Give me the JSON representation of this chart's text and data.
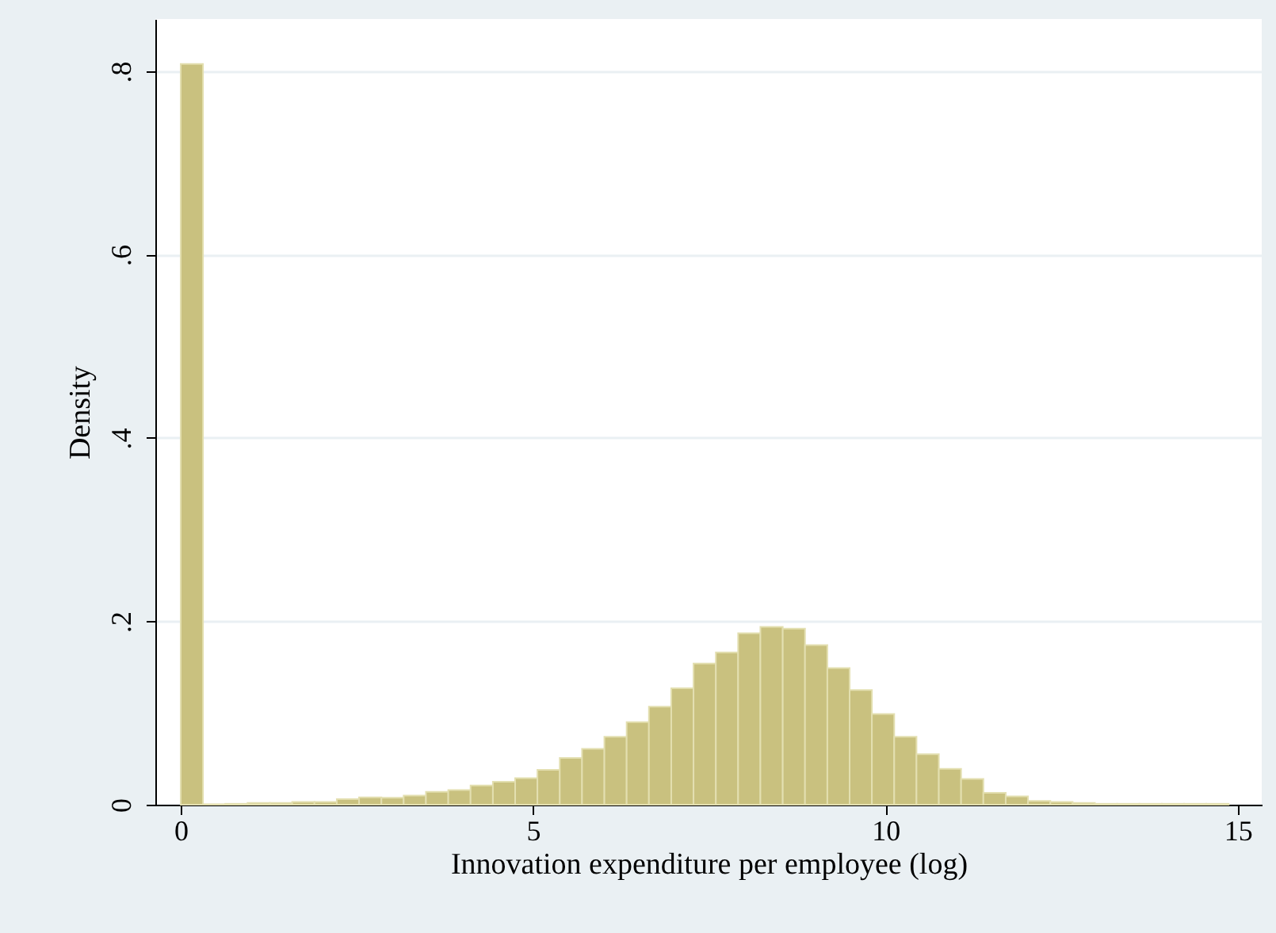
{
  "chart_data": {
    "type": "histogram",
    "xlabel": "Innovation expenditure per employee (log)",
    "ylabel": "Density",
    "bins": [
      0,
      0.316,
      0.633,
      0.949,
      1.266,
      1.582,
      1.898,
      2.215,
      2.531,
      2.848,
      3.164,
      3.48,
      3.797,
      4.113,
      4.43,
      4.746,
      5.062,
      5.379,
      5.695,
      6.012,
      6.328,
      6.644,
      6.961,
      7.277,
      7.594,
      7.91,
      8.226,
      8.543,
      8.859,
      9.176,
      9.492,
      9.808,
      10.125,
      10.441,
      10.758,
      11.074,
      11.39,
      11.707,
      12.023,
      12.34,
      12.656,
      12.972,
      13.289,
      13.605,
      13.922,
      14.238,
      14.554,
      14.871
    ],
    "values": [
      0.808,
      0.0005,
      0.001,
      0.002,
      0.002,
      0.003,
      0.003,
      0.006,
      0.008,
      0.0075,
      0.01,
      0.014,
      0.016,
      0.021,
      0.025,
      0.029,
      0.038,
      0.051,
      0.061,
      0.074,
      0.09,
      0.107,
      0.127,
      0.154,
      0.166,
      0.187,
      0.194,
      0.192,
      0.174,
      0.149,
      0.125,
      0.099,
      0.074,
      0.055,
      0.039,
      0.028,
      0.013,
      0.009,
      0.004,
      0.003,
      0.002,
      0.001,
      0.001,
      0.001,
      0.001,
      0.001,
      0.001
    ],
    "color": "#c9c17f",
    "xlim": [
      -0.36,
      15.34
    ],
    "ylim": [
      0,
      0.857
    ],
    "xticks": [
      0,
      5,
      10,
      15
    ],
    "yticks": [
      {
        "value": 0,
        "label": "0"
      },
      {
        "value": 0.2,
        "label": ".2"
      },
      {
        "value": 0.4,
        "label": ".4"
      },
      {
        "value": 0.6,
        "label": ".6"
      },
      {
        "value": 0.8,
        "label": ".8"
      }
    ],
    "grid": "y"
  }
}
